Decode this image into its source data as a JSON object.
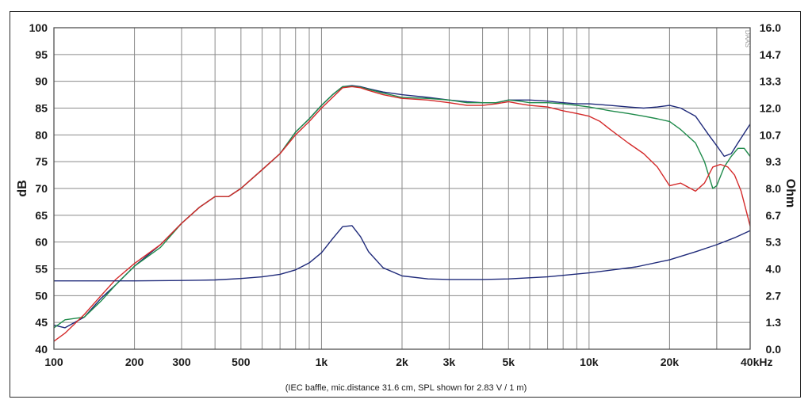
{
  "chart_data": {
    "type": "line",
    "xscale": "log",
    "xlim": [
      100,
      40000
    ],
    "xticks": [
      {
        "v": 100,
        "label": "100"
      },
      {
        "v": 200,
        "label": "200"
      },
      {
        "v": 300,
        "label": "300"
      },
      {
        "v": 500,
        "label": "500"
      },
      {
        "v": 1000,
        "label": "1k"
      },
      {
        "v": 2000,
        "label": "2k"
      },
      {
        "v": 3000,
        "label": "3k"
      },
      {
        "v": 5000,
        "label": "5k"
      },
      {
        "v": 10000,
        "label": "10k"
      },
      {
        "v": 20000,
        "label": "20k"
      },
      {
        "v": 40000,
        "label": "40kHz"
      }
    ],
    "ylabel": "dB",
    "ylim": [
      40,
      100
    ],
    "yticks": [
      "40",
      "45",
      "50",
      "55",
      "60",
      "65",
      "70",
      "75",
      "80",
      "85",
      "90",
      "95",
      "100"
    ],
    "y2label": "Ohm",
    "y2lim": [
      0,
      16
    ],
    "y2ticks": [
      "0.0",
      "1.3",
      "2.7",
      "4.0",
      "5.3",
      "6.7",
      "8.0",
      "9.3",
      "10.7",
      "12.0",
      "13.3",
      "14.7",
      "16.0"
    ],
    "grid": true,
    "caption": "(IEC baffle, mic.distance 31.6 cm, SPL shown for 2.83 V / 1 m)",
    "watermark": "DAAS",
    "series": [
      {
        "color": "#1f2a7a",
        "axis": "left",
        "x": [
          100,
          110,
          130,
          150,
          170,
          200,
          250,
          300,
          350,
          400,
          450,
          500,
          600,
          700,
          800,
          900,
          1000,
          1100,
          1200,
          1300,
          1400,
          1500,
          1700,
          2000,
          2500,
          3000,
          3500,
          4000,
          4500,
          5000,
          5500,
          6000,
          7000,
          8000,
          9000,
          10000,
          12000,
          14000,
          16000,
          18000,
          20000,
          22000,
          25000,
          28000,
          30000,
          32000,
          34000,
          36000,
          40000
        ],
        "y": [
          44.5,
          44.0,
          46.0,
          49.5,
          52.0,
          55.5,
          59.5,
          63.5,
          66.5,
          68.5,
          68.5,
          70.0,
          73.5,
          76.5,
          80.5,
          83.0,
          85.5,
          87.5,
          89.0,
          89.2,
          89.0,
          88.6,
          88.0,
          87.5,
          87.0,
          86.5,
          86.2,
          86.0,
          86.0,
          86.5,
          86.5,
          86.5,
          86.3,
          86.0,
          85.8,
          85.8,
          85.5,
          85.2,
          85.0,
          85.2,
          85.5,
          85.0,
          83.5,
          80.0,
          78.0,
          76.0,
          76.5,
          78.5,
          82.0
        ]
      },
      {
        "color": "#1e8a4a",
        "axis": "left",
        "x": [
          100,
          110,
          130,
          150,
          170,
          200,
          250,
          300,
          350,
          400,
          450,
          500,
          600,
          700,
          800,
          900,
          1000,
          1100,
          1200,
          1300,
          1400,
          1500,
          1700,
          2000,
          2500,
          3000,
          3500,
          4000,
          4500,
          5000,
          5500,
          6000,
          7000,
          8000,
          9000,
          10000,
          12000,
          14000,
          16000,
          18000,
          20000,
          22000,
          25000,
          27000,
          29000,
          30000,
          32000,
          34000,
          36000,
          38000,
          40000
        ],
        "y": [
          44.0,
          45.5,
          46.0,
          49.0,
          52.0,
          55.5,
          59.0,
          63.5,
          66.5,
          68.5,
          68.5,
          70.0,
          73.5,
          76.5,
          80.5,
          83.0,
          85.5,
          87.5,
          89.0,
          89.1,
          88.9,
          88.5,
          87.8,
          87.0,
          86.8,
          86.5,
          86.0,
          86.0,
          86.0,
          86.5,
          86.3,
          86.0,
          86.0,
          85.8,
          85.5,
          85.2,
          84.5,
          84.0,
          83.5,
          83.0,
          82.5,
          81.0,
          78.5,
          75.0,
          70.0,
          70.5,
          74.0,
          76.0,
          77.5,
          77.5,
          76.0
        ]
      },
      {
        "color": "#d42a2a",
        "axis": "left",
        "x": [
          100,
          110,
          130,
          150,
          170,
          200,
          250,
          300,
          350,
          400,
          450,
          500,
          600,
          700,
          800,
          900,
          1000,
          1100,
          1200,
          1300,
          1400,
          1500,
          1700,
          2000,
          2500,
          3000,
          3500,
          4000,
          4500,
          5000,
          5500,
          6000,
          7000,
          8000,
          9000,
          10000,
          11000,
          12000,
          14000,
          16000,
          18000,
          20000,
          22000,
          25000,
          27000,
          29000,
          31000,
          33000,
          35000,
          37000,
          40000
        ],
        "y": [
          41.5,
          43.0,
          46.5,
          50.0,
          53.0,
          56.0,
          59.5,
          63.5,
          66.5,
          68.5,
          68.5,
          70.0,
          73.5,
          76.5,
          80.0,
          82.5,
          85.0,
          87.0,
          88.8,
          89.0,
          88.8,
          88.3,
          87.5,
          86.8,
          86.5,
          86.0,
          85.5,
          85.5,
          85.8,
          86.2,
          85.8,
          85.5,
          85.2,
          84.5,
          84.0,
          83.5,
          82.5,
          81.0,
          78.5,
          76.5,
          74.0,
          70.5,
          71.0,
          69.5,
          71.0,
          74.0,
          74.5,
          74.0,
          72.5,
          69.5,
          63.0
        ]
      },
      {
        "color": "#1f2a7a",
        "axis": "right",
        "x": [
          100,
          200,
          300,
          400,
          500,
          600,
          700,
          800,
          900,
          1000,
          1100,
          1200,
          1300,
          1400,
          1500,
          1700,
          2000,
          2500,
          3000,
          4000,
          5000,
          7000,
          10000,
          15000,
          20000,
          25000,
          30000,
          35000,
          40000
        ],
        "y": [
          3.4,
          3.4,
          3.42,
          3.45,
          3.52,
          3.6,
          3.73,
          3.95,
          4.3,
          4.8,
          5.5,
          6.1,
          6.15,
          5.6,
          4.85,
          4.05,
          3.65,
          3.5,
          3.47,
          3.47,
          3.5,
          3.6,
          3.8,
          4.1,
          4.45,
          4.85,
          5.2,
          5.55,
          5.9
        ]
      }
    ]
  }
}
